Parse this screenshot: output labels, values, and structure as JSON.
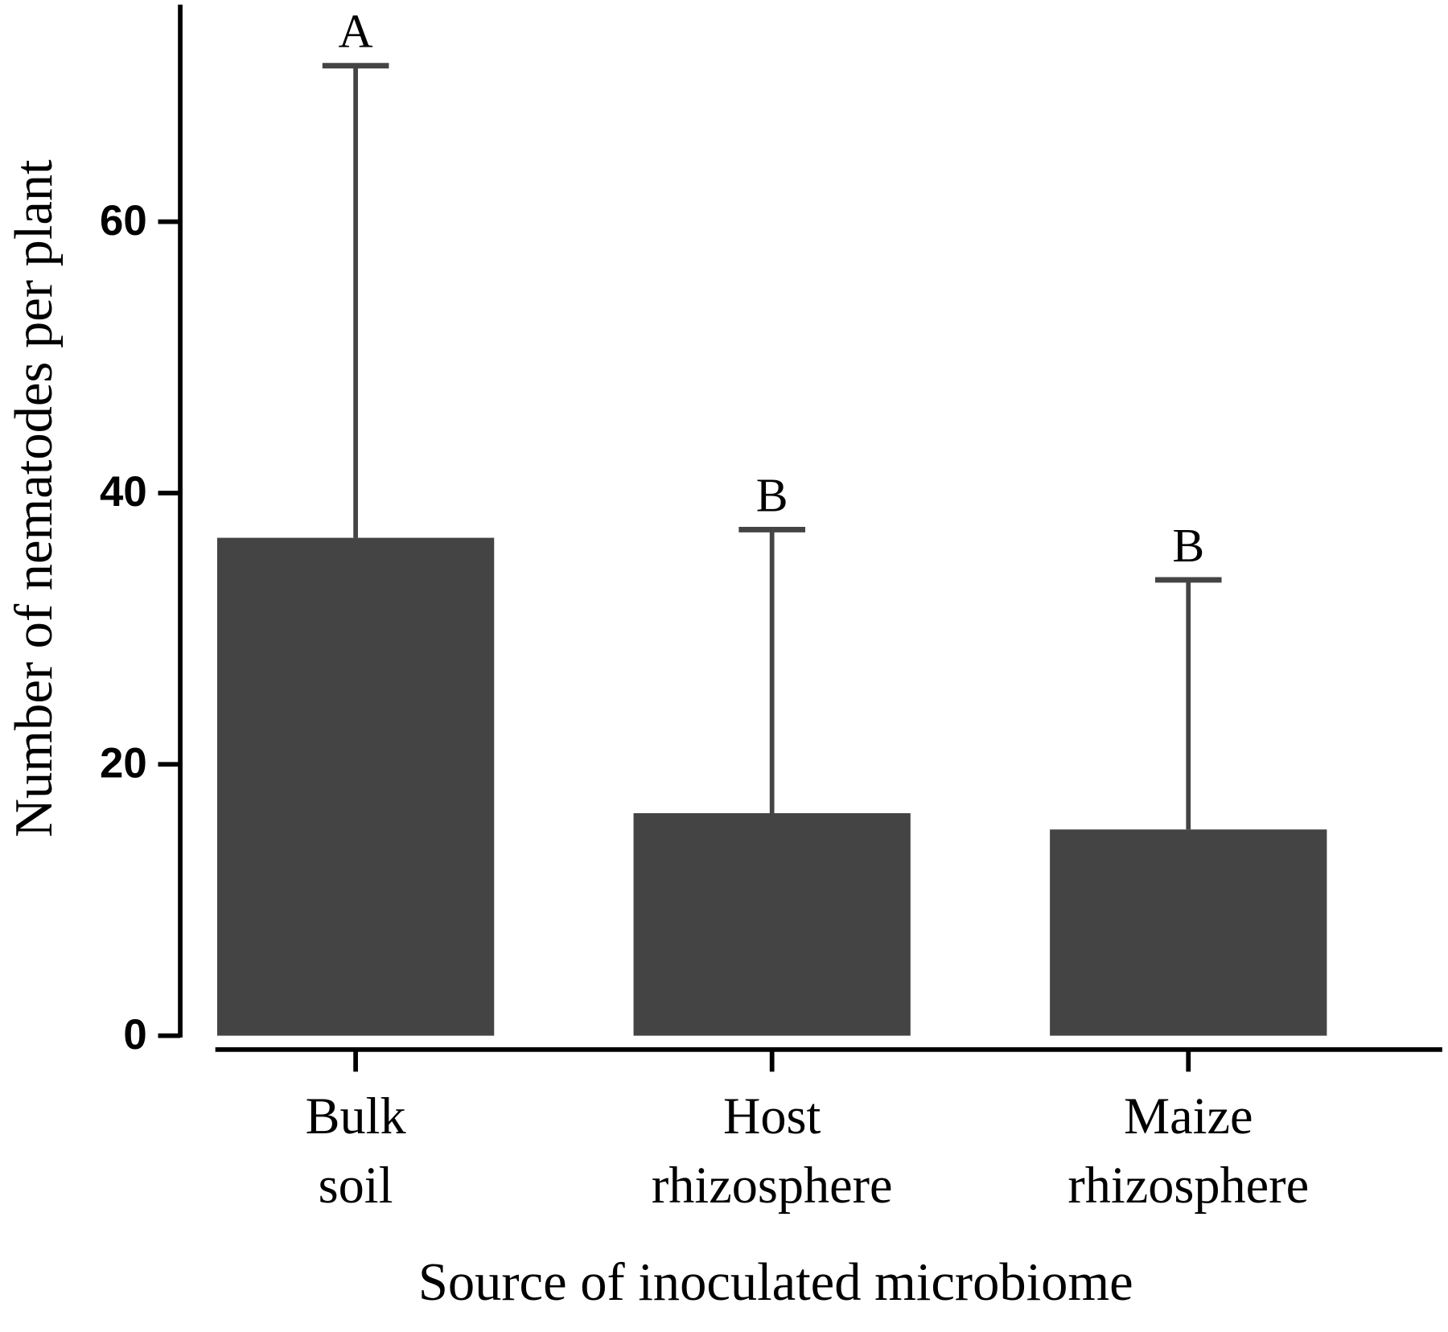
{
  "chart_data": {
    "type": "bar",
    "x_label": "Source of inoculated microbiome",
    "y_label": "Number of nematodes per plant",
    "categories": [
      [
        "Bulk",
        "soil"
      ],
      [
        "Host",
        "rhizosphere"
      ],
      [
        "Maize",
        "rhizosphere"
      ]
    ],
    "values": [
      36.7,
      16.4,
      15.2
    ],
    "errors": [
      34.8,
      20.9,
      18.4
    ],
    "annotations": [
      "A",
      "B",
      "B"
    ],
    "color": "#444444",
    "ylim": [
      0,
      76
    ],
    "yticks": [
      0,
      20,
      40,
      60
    ],
    "grid": false
  }
}
